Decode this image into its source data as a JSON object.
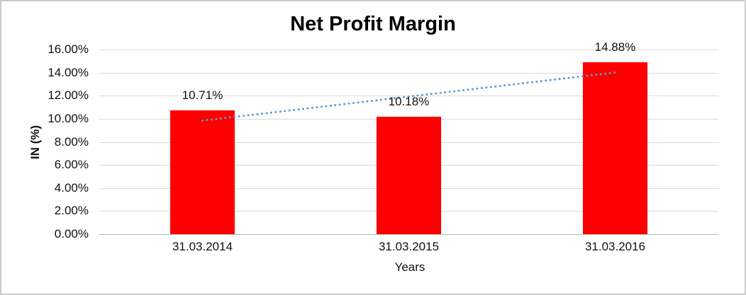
{
  "chart_data": {
    "type": "bar",
    "title": "Net Profit Margin",
    "xlabel": "Years",
    "ylabel": "IN (%)",
    "categories": [
      "31.03.2014",
      "31.03.2015",
      "31.03.2016"
    ],
    "values": [
      10.71,
      10.18,
      14.88
    ],
    "value_labels": [
      "10.71%",
      "10.18%",
      "14.88%"
    ],
    "ylim": [
      0,
      16
    ],
    "ytick_step": 2,
    "ytick_labels": [
      "0.00%",
      "2.00%",
      "4.00%",
      "6.00%",
      "8.00%",
      "10.00%",
      "12.00%",
      "14.00%",
      "16.00%"
    ],
    "grid": true,
    "legend_position": "none",
    "bar_color": "#FF0000",
    "trendline": {
      "type": "linear",
      "style": "dotted",
      "color": "#5B9BD5"
    }
  }
}
